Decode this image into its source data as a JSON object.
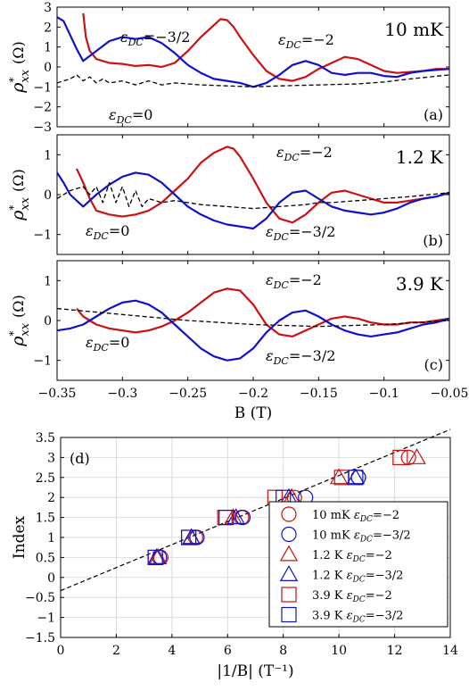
{
  "colors": {
    "red": "#cc1111",
    "blue": "#1111cc",
    "black": "#000000",
    "grid": "#dddddd"
  },
  "top_figure": {
    "xlabel": "B (T)",
    "ylabel": "ρ*xx (Ω)",
    "xlim": [
      -0.35,
      -0.05
    ],
    "xticks": [
      "-0.35",
      "-0.3",
      "-0.25",
      "-0.2",
      "-0.15",
      "-0.1",
      "-0.05"
    ]
  },
  "chart_data": [
    {
      "type": "line",
      "panel": "(a)",
      "temperature": "10 mK",
      "xlabel": "B (T)",
      "ylabel": "ρ*xx (Ω)",
      "xlim": [
        -0.35,
        -0.05
      ],
      "ylim": [
        -3,
        3
      ],
      "yticks": [
        "-3",
        "-2",
        "-1",
        "0",
        "1",
        "2",
        "3"
      ],
      "annotations": [
        {
          "text": "εDC=−3/2",
          "color": "blue"
        },
        {
          "text": "εDC=−2",
          "color": "red"
        },
        {
          "text": "εDC=0",
          "color": "black"
        }
      ],
      "series": [
        {
          "name": "εDC=−2",
          "color": "red",
          "style": "solid",
          "x": [
            -0.33,
            -0.328,
            -0.325,
            -0.32,
            -0.315,
            -0.31,
            -0.3,
            -0.29,
            -0.28,
            -0.27,
            -0.26,
            -0.25,
            -0.24,
            -0.23,
            -0.225,
            -0.22,
            -0.215,
            -0.21,
            -0.2,
            -0.19,
            -0.18,
            -0.17,
            -0.16,
            -0.15,
            -0.14,
            -0.13,
            -0.12,
            -0.11,
            -0.1,
            -0.09,
            -0.08,
            -0.07,
            -0.06,
            -0.05
          ],
          "y": [
            2.7,
            1.5,
            0.8,
            0.4,
            0.3,
            0.2,
            0.15,
            0.05,
            0.1,
            0.0,
            0.2,
            0.8,
            1.5,
            2.1,
            2.4,
            2.35,
            2.0,
            1.5,
            0.6,
            -0.2,
            -0.6,
            -0.7,
            -0.5,
            -0.1,
            0.2,
            0.5,
            0.4,
            0.1,
            -0.2,
            -0.3,
            -0.25,
            -0.2,
            -0.1,
            -0.1
          ]
        },
        {
          "name": "εDC=−3/2",
          "color": "blue",
          "style": "solid",
          "x": [
            -0.35,
            -0.345,
            -0.34,
            -0.335,
            -0.33,
            -0.32,
            -0.31,
            -0.3,
            -0.29,
            -0.28,
            -0.27,
            -0.26,
            -0.25,
            -0.24,
            -0.23,
            -0.22,
            -0.21,
            -0.2,
            -0.19,
            -0.18,
            -0.17,
            -0.16,
            -0.15,
            -0.14,
            -0.13,
            -0.12,
            -0.11,
            -0.1,
            -0.09,
            -0.08,
            -0.07,
            -0.06,
            -0.05
          ],
          "y": [
            2.5,
            2.3,
            1.6,
            0.9,
            0.3,
            0.8,
            1.3,
            1.5,
            1.4,
            1.5,
            1.2,
            0.7,
            0.1,
            -0.3,
            -0.6,
            -0.7,
            -0.8,
            -1.0,
            -0.8,
            -0.4,
            0.1,
            0.3,
            0.1,
            -0.3,
            -0.4,
            -0.3,
            -0.3,
            -0.45,
            -0.5,
            -0.3,
            -0.2,
            -0.15,
            -0.1
          ]
        },
        {
          "name": "εDC=0",
          "color": "black",
          "style": "dashed",
          "x": [
            -0.35,
            -0.34,
            -0.335,
            -0.33,
            -0.325,
            -0.32,
            -0.315,
            -0.31,
            -0.3,
            -0.29,
            -0.28,
            -0.27,
            -0.26,
            -0.25,
            -0.24,
            -0.22,
            -0.2,
            -0.18,
            -0.15,
            -0.12,
            -0.1,
            -0.08,
            -0.05
          ],
          "y": [
            -0.8,
            -0.6,
            -0.4,
            -0.7,
            -0.5,
            -0.8,
            -0.6,
            -0.8,
            -0.7,
            -0.9,
            -0.7,
            -0.9,
            -0.8,
            -0.85,
            -0.9,
            -0.95,
            -1.0,
            -0.95,
            -0.9,
            -0.85,
            -0.75,
            -0.6,
            -0.4
          ]
        }
      ]
    },
    {
      "type": "line",
      "panel": "(b)",
      "temperature": "1.2 K",
      "xlabel": "B (T)",
      "ylabel": "ρ*xx (Ω)",
      "xlim": [
        -0.35,
        -0.05
      ],
      "ylim": [
        -1.5,
        1.5
      ],
      "yticks": [
        "-1",
        "0",
        "1"
      ],
      "annotations": [
        {
          "text": "εDC=−2",
          "color": "red"
        },
        {
          "text": "εDC=0",
          "color": "black"
        },
        {
          "text": "εDC=−3/2",
          "color": "blue"
        }
      ],
      "series": [
        {
          "name": "εDC=−2",
          "color": "red",
          "style": "solid",
          "x": [
            -0.335,
            -0.33,
            -0.325,
            -0.32,
            -0.31,
            -0.3,
            -0.29,
            -0.28,
            -0.27,
            -0.26,
            -0.25,
            -0.24,
            -0.23,
            -0.22,
            -0.215,
            -0.21,
            -0.2,
            -0.19,
            -0.18,
            -0.17,
            -0.16,
            -0.15,
            -0.14,
            -0.13,
            -0.12,
            -0.11,
            -0.1,
            -0.09,
            -0.08,
            -0.07,
            -0.06,
            -0.05
          ],
          "y": [
            0.65,
            0.3,
            -0.1,
            -0.4,
            -0.5,
            -0.55,
            -0.5,
            -0.4,
            -0.2,
            0.1,
            0.4,
            0.8,
            1.05,
            1.2,
            1.15,
            0.95,
            0.4,
            -0.2,
            -0.6,
            -0.7,
            -0.5,
            -0.2,
            0.05,
            0.1,
            0.0,
            -0.1,
            -0.2,
            -0.2,
            -0.15,
            -0.1,
            -0.05,
            0.05
          ]
        },
        {
          "name": "εDC=−3/2",
          "color": "blue",
          "style": "solid",
          "x": [
            -0.35,
            -0.345,
            -0.34,
            -0.33,
            -0.32,
            -0.31,
            -0.3,
            -0.29,
            -0.28,
            -0.27,
            -0.26,
            -0.25,
            -0.24,
            -0.23,
            -0.22,
            -0.21,
            -0.2,
            -0.19,
            -0.18,
            -0.17,
            -0.16,
            -0.15,
            -0.14,
            -0.13,
            -0.12,
            -0.11,
            -0.1,
            -0.09,
            -0.08,
            -0.07,
            -0.06,
            -0.05
          ],
          "y": [
            0.55,
            0.3,
            0.0,
            -0.3,
            0.0,
            0.25,
            0.45,
            0.55,
            0.5,
            0.3,
            0.0,
            -0.3,
            -0.5,
            -0.65,
            -0.75,
            -0.8,
            -0.85,
            -0.6,
            -0.2,
            0.05,
            0.1,
            -0.1,
            -0.3,
            -0.4,
            -0.45,
            -0.5,
            -0.45,
            -0.35,
            -0.2,
            -0.1,
            -0.05,
            0.05
          ]
        },
        {
          "name": "εDC=0",
          "color": "black",
          "style": "dashed",
          "x": [
            -0.35,
            -0.34,
            -0.33,
            -0.325,
            -0.32,
            -0.315,
            -0.31,
            -0.305,
            -0.3,
            -0.295,
            -0.29,
            -0.285,
            -0.28,
            -0.27,
            -0.26,
            -0.25,
            -0.24,
            -0.22,
            -0.2,
            -0.18,
            -0.16,
            -0.15,
            -0.14,
            -0.12,
            -0.1,
            -0.08,
            -0.05
          ],
          "y": [
            -0.1,
            0.1,
            0.2,
            0.0,
            0.2,
            -0.2,
            0.3,
            -0.2,
            0.2,
            -0.3,
            0.1,
            -0.3,
            -0.1,
            -0.2,
            -0.15,
            -0.2,
            -0.25,
            -0.3,
            -0.35,
            -0.3,
            -0.25,
            -0.2,
            -0.2,
            -0.15,
            -0.1,
            -0.05,
            0.05
          ]
        }
      ]
    },
    {
      "type": "line",
      "panel": "(c)",
      "temperature": "3.9 K",
      "xlabel": "B (T)",
      "ylabel": "ρ*xx (Ω)",
      "xlim": [
        -0.35,
        -0.05
      ],
      "ylim": [
        -1.5,
        1.5
      ],
      "yticks": [
        "-1",
        "0",
        "1"
      ],
      "annotations": [
        {
          "text": "εDC=−2",
          "color": "red"
        },
        {
          "text": "εDC=0",
          "color": "black"
        },
        {
          "text": "εDC=−3/2",
          "color": "blue"
        }
      ],
      "series": [
        {
          "name": "εDC=−2",
          "color": "red",
          "style": "solid",
          "x": [
            -0.335,
            -0.33,
            -0.32,
            -0.31,
            -0.3,
            -0.29,
            -0.28,
            -0.27,
            -0.26,
            -0.25,
            -0.24,
            -0.23,
            -0.22,
            -0.21,
            -0.2,
            -0.19,
            -0.18,
            -0.17,
            -0.16,
            -0.15,
            -0.14,
            -0.13,
            -0.12,
            -0.11,
            -0.1,
            -0.09,
            -0.08,
            -0.07,
            -0.06,
            -0.05
          ],
          "y": [
            0.3,
            0.1,
            -0.1,
            -0.2,
            -0.25,
            -0.3,
            -0.25,
            -0.15,
            0.0,
            0.2,
            0.45,
            0.7,
            0.8,
            0.75,
            0.4,
            -0.1,
            -0.35,
            -0.4,
            -0.25,
            -0.1,
            0.05,
            0.1,
            0.05,
            -0.05,
            -0.1,
            -0.1,
            -0.05,
            -0.05,
            0.0,
            0.05
          ]
        },
        {
          "name": "εDC=−3/2",
          "color": "blue",
          "style": "solid",
          "x": [
            -0.35,
            -0.34,
            -0.33,
            -0.32,
            -0.31,
            -0.3,
            -0.29,
            -0.28,
            -0.27,
            -0.26,
            -0.25,
            -0.24,
            -0.23,
            -0.22,
            -0.21,
            -0.2,
            -0.19,
            -0.18,
            -0.17,
            -0.16,
            -0.15,
            -0.14,
            -0.13,
            -0.12,
            -0.11,
            -0.1,
            -0.09,
            -0.08,
            -0.07,
            -0.06,
            -0.05
          ],
          "y": [
            -0.25,
            -0.2,
            -0.1,
            0.1,
            0.3,
            0.45,
            0.5,
            0.4,
            0.2,
            -0.1,
            -0.4,
            -0.7,
            -0.9,
            -1.0,
            -0.95,
            -0.7,
            -0.3,
            0.0,
            0.2,
            0.25,
            0.1,
            -0.1,
            -0.25,
            -0.35,
            -0.4,
            -0.35,
            -0.3,
            -0.2,
            -0.1,
            -0.05,
            0.05
          ]
        },
        {
          "name": "εDC=0",
          "color": "black",
          "style": "dashed",
          "x": [
            -0.35,
            -0.3,
            -0.25,
            -0.2,
            -0.15,
            -0.1,
            -0.05
          ],
          "y": [
            0.3,
            0.15,
            0.0,
            -0.1,
            -0.15,
            -0.1,
            0.0
          ]
        }
      ]
    },
    {
      "type": "scatter",
      "panel": "(d)",
      "xlabel": "|1/B| (T⁻¹)",
      "ylabel": "Index",
      "xlim": [
        0,
        14
      ],
      "ylim": [
        -1.5,
        3.5
      ],
      "xticks": [
        "0",
        "2",
        "4",
        "6",
        "8",
        "10",
        "12",
        "14"
      ],
      "yticks": [
        "-1.5",
        "-1",
        "-0.5",
        "0",
        "0.5",
        "1",
        "1.5",
        "2",
        "2.5",
        "3",
        "3.5"
      ],
      "grid": true,
      "legend": "lower-right",
      "fit_line": {
        "x": [
          0,
          14
        ],
        "y": [
          -0.33,
          3.7
        ],
        "style": "dashed",
        "color": "black"
      },
      "series": [
        {
          "name": "10 mK εDC=−2",
          "marker": "circle",
          "color": "red",
          "x": [
            3.6,
            4.85,
            6.5,
            8.4,
            10.7,
            12.5
          ],
          "y": [
            0.5,
            1.0,
            1.5,
            2.0,
            2.5,
            3.0
          ]
        },
        {
          "name": "10 mK εDC=−3/2",
          "marker": "circle",
          "color": "blue",
          "x": [
            3.55,
            4.9,
            6.55,
            8.8,
            10.7
          ],
          "y": [
            0.5,
            1.0,
            1.5,
            2.0,
            2.5
          ]
        },
        {
          "name": "1.2 K εDC=−2",
          "marker": "triangle",
          "color": "red",
          "x": [
            3.5,
            4.7,
            6.2,
            8.3,
            10.0,
            12.8
          ],
          "y": [
            0.5,
            1.0,
            1.5,
            2.0,
            2.5,
            3.0
          ]
        },
        {
          "name": "1.2 K εDC=−3/2",
          "marker": "triangle",
          "color": "blue",
          "x": [
            3.45,
            4.7,
            6.3,
            8.2,
            10.6
          ],
          "y": [
            0.5,
            1.0,
            1.5,
            2.0,
            2.5
          ]
        },
        {
          "name": "3.9 K εDC=−2",
          "marker": "square",
          "color": "red",
          "x": [
            3.4,
            4.6,
            5.9,
            7.7,
            10.1,
            12.2
          ],
          "y": [
            0.5,
            1.0,
            1.5,
            2.0,
            2.5,
            3.0
          ]
        },
        {
          "name": "3.9 K εDC=−3/2",
          "marker": "square",
          "color": "blue",
          "x": [
            3.4,
            4.6,
            5.95,
            8.0,
            10.6
          ],
          "y": [
            0.5,
            1.0,
            1.5,
            2.0,
            2.5
          ]
        }
      ]
    }
  ]
}
